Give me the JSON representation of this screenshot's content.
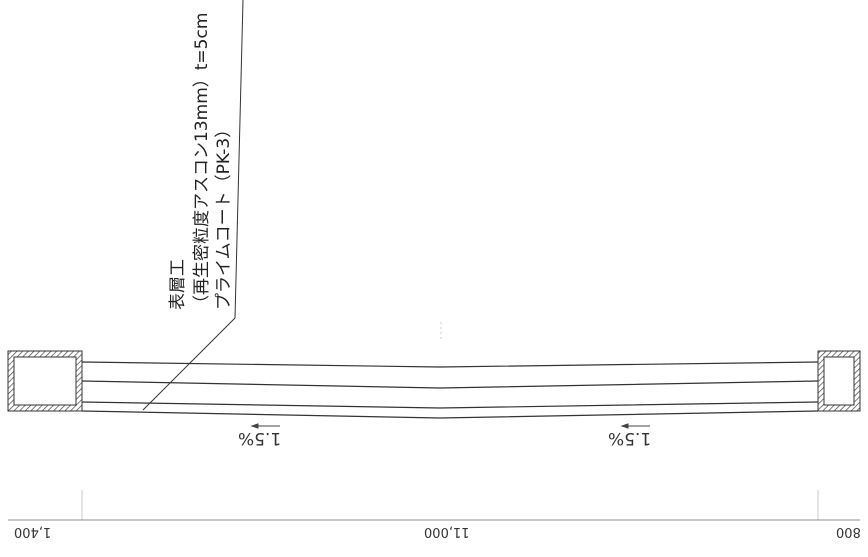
{
  "annotation": {
    "line1": "表層工",
    "line2": "（再生密粒度アスコン13mm）t=5cm",
    "line3": "プライムコート（PK-3）"
  },
  "slopes": {
    "left": "1.5%",
    "right": "1.5%"
  },
  "dimensions": {
    "left": "1,400",
    "center": "11,000",
    "right": "800"
  }
}
